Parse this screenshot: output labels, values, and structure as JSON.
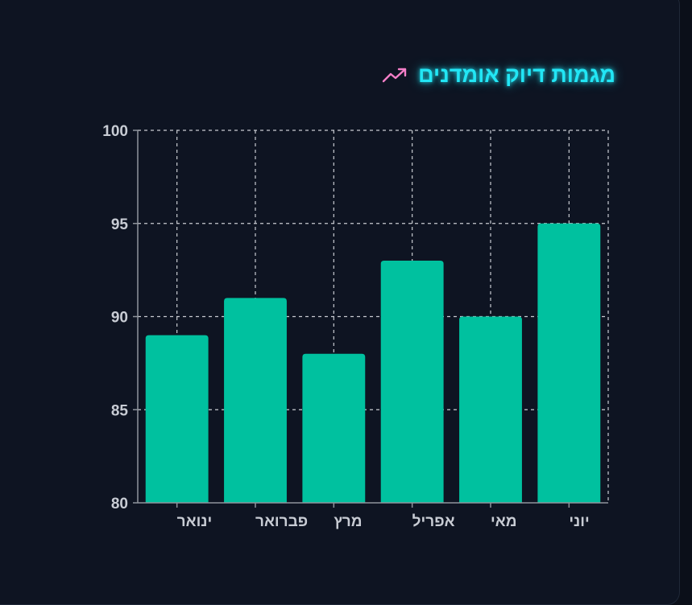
{
  "chart_data": {
    "type": "bar",
    "title": "מגמות דיוק אומדנים",
    "title_icon": "trending-up-icon",
    "categories": [
      "ינואר",
      "פברואר",
      "מרץ",
      "אפריל",
      "מאי",
      "יוני"
    ],
    "values": [
      89,
      91,
      88,
      93,
      90,
      95
    ],
    "yticks": [
      80,
      85,
      90,
      95,
      100
    ],
    "ylim": [
      80,
      100
    ],
    "xlabel": "",
    "ylabel": "",
    "grid": true,
    "colors": {
      "bar": "#00c19f",
      "title": "#22e6f5",
      "icon": "#f47fc8",
      "grid": "#c9ccd2",
      "tick_text": "#c8ccd4"
    }
  }
}
